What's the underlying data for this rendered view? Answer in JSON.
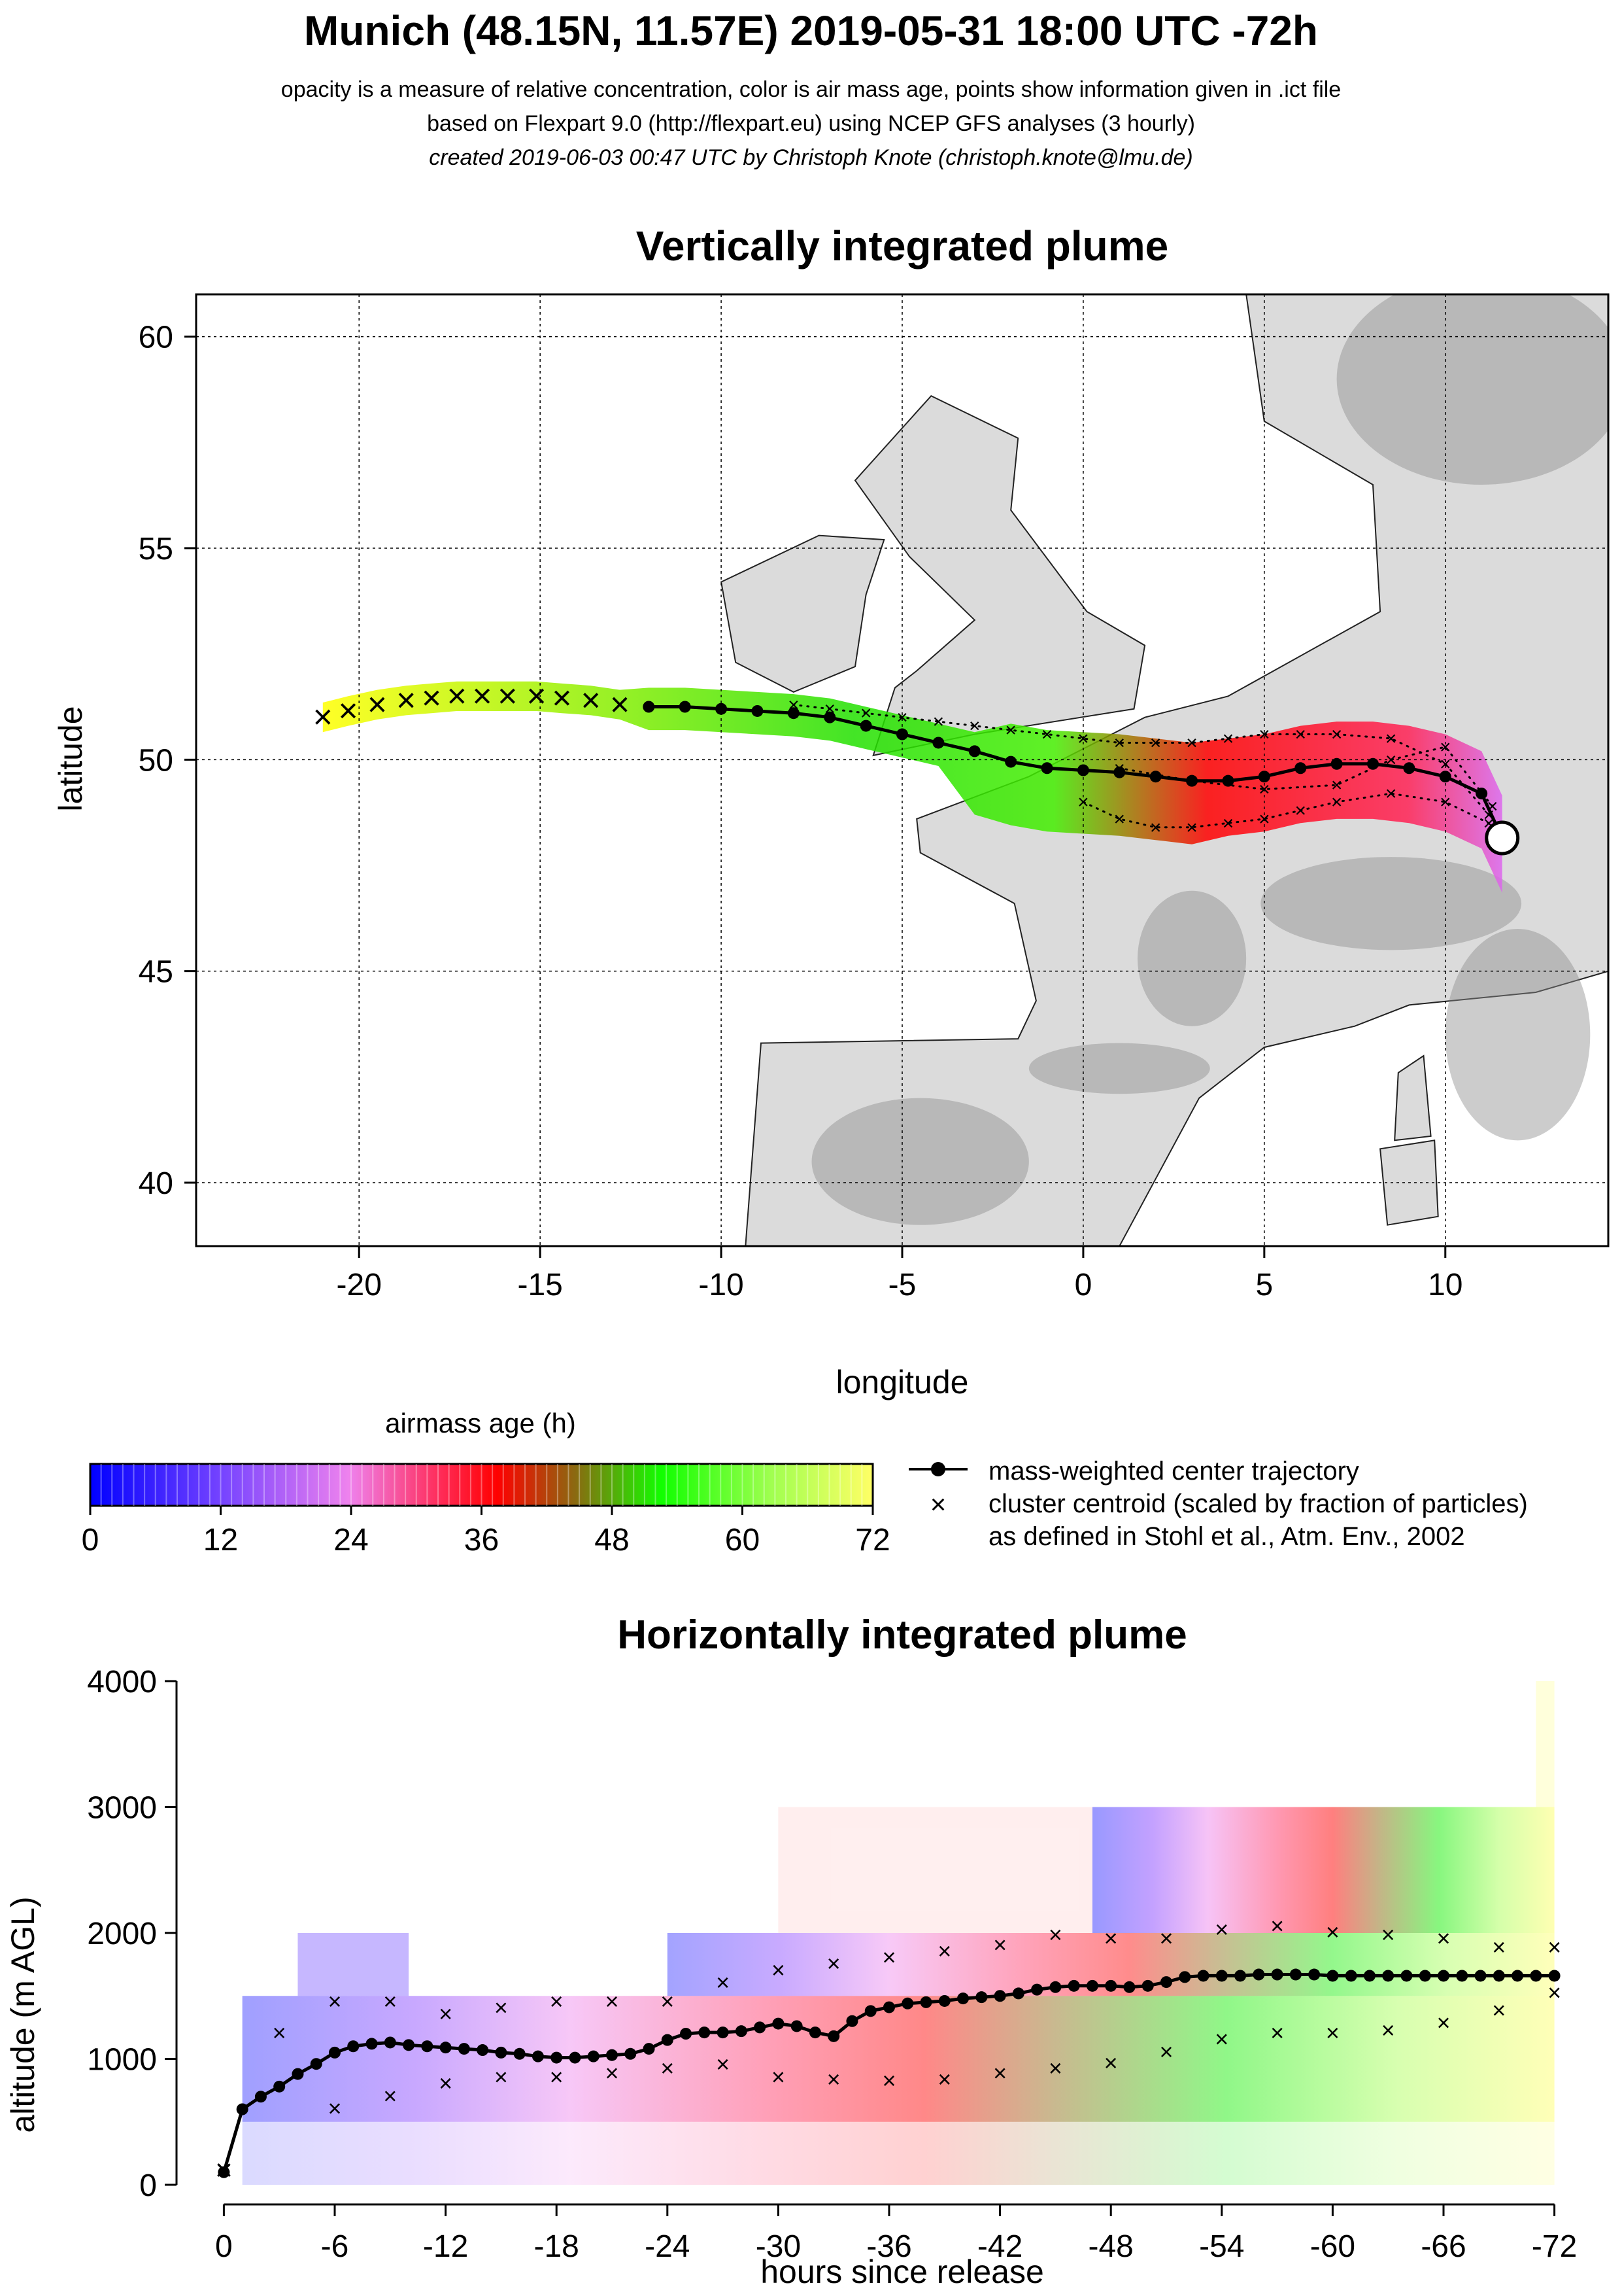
{
  "header": {
    "title": "Munich (48.15N, 11.57E) 2019-05-31 18:00 UTC -72h",
    "subtitle_1": "opacity is a measure of relative concentration, color is air mass age, points show information given in .ict file",
    "subtitle_2": "based on Flexpart 9.0 (http://flexpart.eu) using NCEP GFS analyses (3 hourly)",
    "subtitle_3": "created 2019-06-03 00:47 UTC by Christoph Knote (christoph.knote@lmu.de)"
  },
  "colors": {
    "background": "#ffffff",
    "terrain": "#bdbdbd",
    "age_0": "#0000ff",
    "age_24": "#ee82ee",
    "age_36": "#ff0000",
    "age_54": "#00ff00",
    "age_72": "#ffff66",
    "trajectory": "#000000"
  },
  "chart_data": [
    {
      "type": "scatter",
      "title": "Vertically integrated plume",
      "xlabel": "longitude",
      "ylabel": "latitude",
      "xlim": [
        -24.5,
        14.5
      ],
      "ylim": [
        38.5,
        61
      ],
      "xticks": [
        -20,
        -15,
        -10,
        -5,
        0,
        5,
        10
      ],
      "xtick_labels": [
        "-20",
        "-15",
        "-10",
        "-5",
        "0",
        "5",
        "10"
      ],
      "yticks": [
        40,
        45,
        50,
        55,
        60
      ],
      "ytick_labels": [
        "40",
        "45",
        "50",
        "55",
        "60"
      ],
      "grid": true,
      "release": {
        "lon": 11.57,
        "lat": 48.15
      },
      "center_trajectory": {
        "lon": [
          11.57,
          11.0,
          10.0,
          9.0,
          8.0,
          7.0,
          6.0,
          5.0,
          4.0,
          3.0,
          2.0,
          1.0,
          0.0,
          -1.0,
          -2.0,
          -3.0,
          -4.0,
          -5.0,
          -6.0,
          -7.0,
          -8.0,
          -9.0,
          -10.0,
          -11.0,
          -12.0
        ],
        "lat": [
          48.15,
          49.2,
          49.6,
          49.8,
          49.9,
          49.9,
          49.8,
          49.6,
          49.5,
          49.5,
          49.6,
          49.7,
          49.75,
          49.8,
          49.95,
          50.2,
          50.4,
          50.6,
          50.8,
          51.0,
          51.1,
          51.15,
          51.2,
          51.25,
          51.25
        ]
      },
      "cluster_tracks": [
        {
          "lon": [
            11.2,
            10.0,
            8.5,
            7.0,
            6.0,
            5.0,
            4.0,
            3.0,
            2.0,
            1.0,
            0.0,
            -1.0,
            -2.0,
            -3.0,
            -4.0,
            -5.0,
            -6.0,
            -7.0,
            -8.0
          ],
          "lat": [
            48.7,
            49.9,
            50.5,
            50.6,
            50.6,
            50.6,
            50.5,
            50.4,
            50.4,
            50.4,
            50.5,
            50.6,
            50.7,
            50.8,
            50.9,
            51.0,
            51.1,
            51.2,
            51.3
          ]
        },
        {
          "lon": [
            11.2,
            10.0,
            8.5,
            7.0,
            6.0,
            5.0,
            4.0,
            3.0,
            2.0,
            1.0,
            0.0
          ],
          "lat": [
            48.5,
            49.0,
            49.2,
            49.0,
            48.8,
            48.6,
            48.5,
            48.4,
            48.4,
            48.6,
            49.0
          ]
        },
        {
          "lon": [
            11.3,
            10.0,
            8.5,
            7.0,
            5.0,
            3.0,
            1.0
          ],
          "lat": [
            48.9,
            50.3,
            50.0,
            49.4,
            49.3,
            49.5,
            49.8
          ]
        }
      ],
      "cluster_centroids_west": {
        "lon": [
          -21.0,
          -20.3,
          -19.5,
          -18.7,
          -18.0,
          -17.3,
          -16.6,
          -15.9,
          -15.1,
          -14.4,
          -13.6,
          -12.8
        ],
        "lat": [
          51.0,
          51.15,
          51.3,
          51.4,
          51.45,
          51.5,
          51.5,
          51.5,
          51.5,
          51.45,
          51.4,
          51.3
        ]
      },
      "plume_age_hours_range": [
        0,
        72
      ]
    },
    {
      "type": "heatmap",
      "colorbar_title": "airmass age (h)",
      "ticks": [
        0,
        12,
        24,
        36,
        48,
        60,
        72
      ],
      "tick_labels": [
        "0",
        "12",
        "24",
        "36",
        "48",
        "60",
        "72"
      ],
      "range": [
        0,
        72
      ],
      "legend": [
        "mass-weighted center trajectory",
        "cluster centroid (scaled by fraction of particles)",
        "as defined in Stohl et al., Atm. Env., 2002"
      ]
    },
    {
      "type": "line",
      "title": "Horizontally integrated plume",
      "xlabel": "hours since release",
      "ylabel": "altitude (m AGL)",
      "xlim": [
        1.5,
        -73.5
      ],
      "ylim": [
        0,
        4000
      ],
      "xticks": [
        0,
        -6,
        -12,
        -18,
        -24,
        -30,
        -36,
        -42,
        -48,
        -54,
        -60,
        -66,
        -72
      ],
      "xtick_labels": [
        "0",
        "-6",
        "-12",
        "-18",
        "-24",
        "-30",
        "-36",
        "-42",
        "-48",
        "-54",
        "-60",
        "-66",
        "-72"
      ],
      "yticks": [
        0,
        1000,
        2000,
        3000,
        4000
      ],
      "ytick_labels": [
        "0",
        "1000",
        "2000",
        "3000",
        "4000"
      ],
      "center_trajectory": {
        "x": [
          0,
          -1,
          -2,
          -3,
          -4,
          -5,
          -6,
          -7,
          -8,
          -9,
          -10,
          -11,
          -12,
          -13,
          -14,
          -15,
          -16,
          -17,
          -18,
          -19,
          -20,
          -21,
          -22,
          -23,
          -24,
          -25,
          -26,
          -27,
          -28,
          -29,
          -30,
          -31,
          -32,
          -33,
          -34,
          -35,
          -36,
          -37,
          -38,
          -39,
          -40,
          -41,
          -42,
          -43,
          -44,
          -45,
          -46,
          -47,
          -48,
          -49,
          -50,
          -51,
          -52,
          -53,
          -54,
          -55,
          -56,
          -57,
          -58,
          -59,
          -60,
          -61,
          -62,
          -63,
          -64,
          -65,
          -66,
          -67,
          -68,
          -69,
          -70,
          -71,
          -72
        ],
        "y": [
          100,
          600,
          700,
          780,
          880,
          960,
          1050,
          1100,
          1120,
          1130,
          1110,
          1100,
          1090,
          1080,
          1070,
          1050,
          1040,
          1020,
          1010,
          1010,
          1020,
          1030,
          1040,
          1080,
          1150,
          1200,
          1210,
          1210,
          1220,
          1250,
          1280,
          1260,
          1210,
          1180,
          1300,
          1380,
          1410,
          1440,
          1450,
          1460,
          1480,
          1490,
          1500,
          1520,
          1550,
          1570,
          1580,
          1580,
          1580,
          1570,
          1580,
          1610,
          1650,
          1660,
          1660,
          1660,
          1670,
          1670,
          1670,
          1670,
          1660,
          1660,
          1660,
          1660,
          1660,
          1660,
          1660,
          1660,
          1660,
          1660,
          1660,
          1660,
          1660
        ]
      },
      "upper_cluster": {
        "x": [
          -3,
          -6,
          -9,
          -12,
          -15,
          -18,
          -21,
          -24,
          -27,
          -30,
          -33,
          -36,
          -39,
          -42,
          -45,
          -48,
          -51,
          -54,
          -57,
          -60,
          -63,
          -66,
          -69,
          -72
        ],
        "y": [
          1200,
          1450,
          1450,
          1350,
          1400,
          1450,
          1450,
          1450,
          1600,
          1700,
          1750,
          1800,
          1850,
          1900,
          1980,
          1950,
          1950,
          2020,
          2050,
          2000,
          1980,
          1950,
          1880,
          1880
        ]
      },
      "lower_cluster": {
        "x": [
          -6,
          -9,
          -12,
          -15,
          -18,
          -21,
          -24,
          -27,
          -30,
          -33,
          -36,
          -39,
          -42,
          -45,
          -48,
          -51,
          -54,
          -57,
          -60,
          -63,
          -66,
          -69,
          -72
        ],
        "y": [
          600,
          700,
          800,
          850,
          850,
          880,
          920,
          950,
          850,
          830,
          820,
          830,
          880,
          920,
          960,
          1050,
          1150,
          1200,
          1200,
          1220,
          1280,
          1380,
          1520
        ]
      }
    }
  ]
}
